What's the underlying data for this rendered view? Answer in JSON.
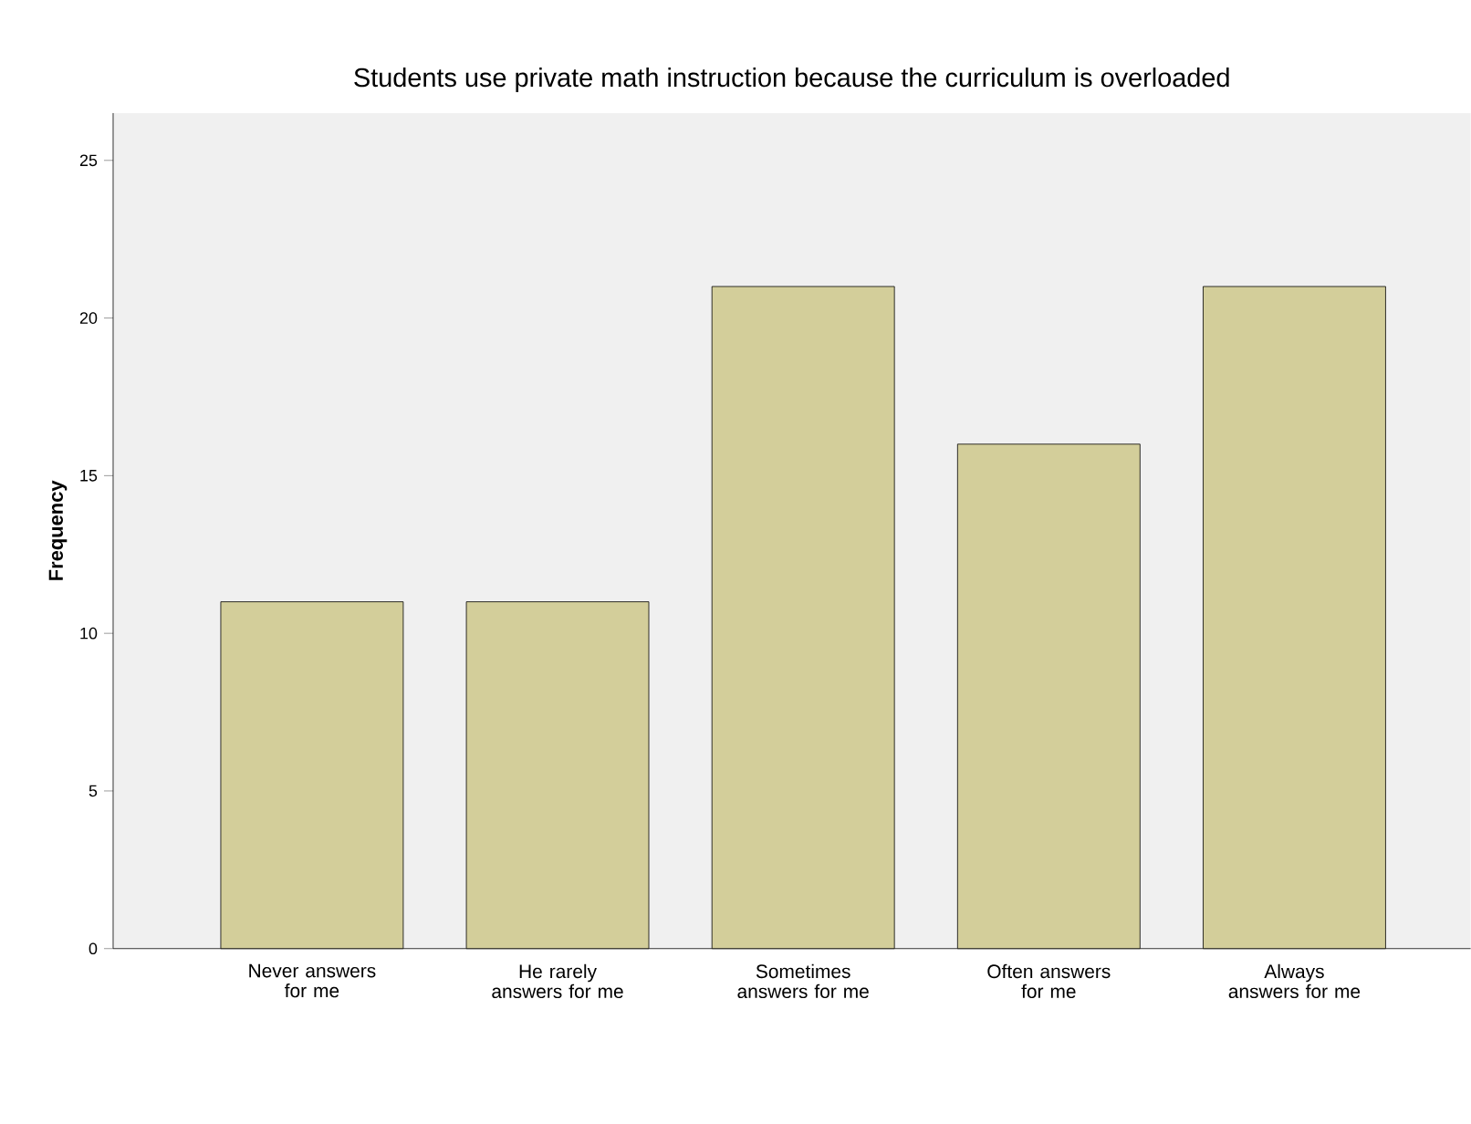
{
  "chart_data": {
    "type": "bar",
    "title": "Students use private math instruction because the curriculum is overloaded",
    "ylabel": "Frequency",
    "categories": [
      "Never answers for me",
      "He rarely answers for me",
      "Sometimes answers for me",
      "Often answers for me",
      "Always answers for me"
    ],
    "values": [
      11,
      11,
      21,
      16,
      21
    ],
    "color": "#d3ce9a",
    "ylim": [
      0,
      26.5
    ],
    "yticks": [
      0,
      5,
      10,
      15,
      20,
      25
    ],
    "grid": false
  }
}
